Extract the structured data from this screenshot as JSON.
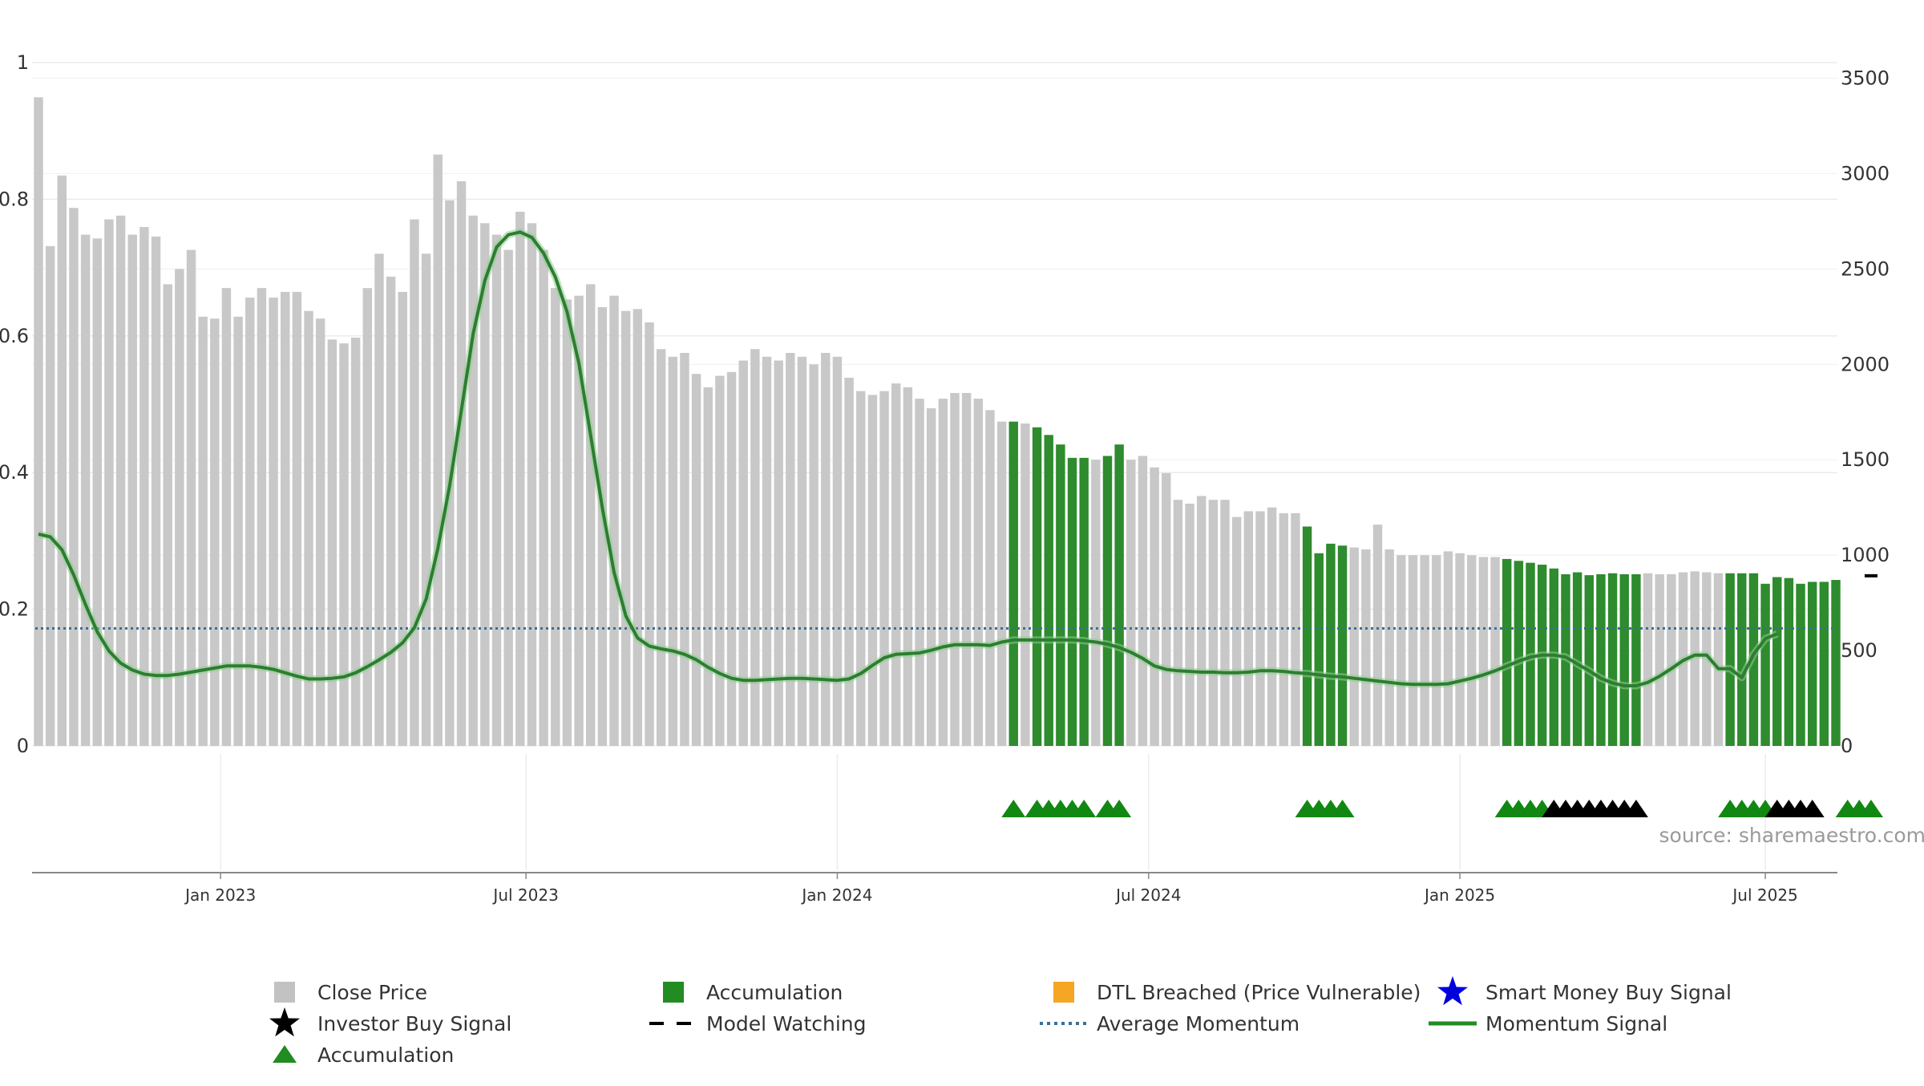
{
  "chart_data": {
    "type": "bar",
    "x_ticks": [
      "Jan 2023",
      "Jul 2023",
      "Jan 2024",
      "Jul 2024",
      "Jan 2025",
      "Jul 2025"
    ],
    "left_axis": {
      "ylim": [
        0,
        1
      ],
      "ticks": [
        "0",
        "0.2",
        "0.4",
        "0.6",
        "0.8",
        "1"
      ],
      "tick_values": [
        0,
        0.2,
        0.4,
        0.6,
        0.8,
        1.0
      ]
    },
    "right_axis": {
      "ylim": [
        0,
        3500
      ],
      "ticks": [
        "0",
        "500",
        "1000",
        "1500",
        "2000",
        "2500",
        "3000",
        "3500"
      ],
      "tick_values": [
        0,
        500,
        1000,
        1500,
        2000,
        2500,
        3000,
        3500
      ]
    },
    "grid": true,
    "legend_position": "bottom",
    "series": [
      {
        "name": "Close Price",
        "axis": "right",
        "values": [
          3400,
          2620,
          2990,
          2820,
          2680,
          2660,
          2760,
          2780,
          2680,
          2720,
          2670,
          2420,
          2500,
          2600,
          2250,
          2240,
          2400,
          2250,
          2350,
          2400,
          2350,
          2380,
          2380,
          2280,
          2240,
          2130,
          2110,
          2140,
          2400,
          2580,
          2460,
          2380,
          2760,
          2580,
          3100,
          2860,
          2960,
          2780,
          2740,
          2680,
          2600,
          2800,
          2740,
          2600,
          2400,
          2340,
          2360,
          2420,
          2300,
          2360,
          2280,
          2290,
          2220,
          2080,
          2040,
          2060,
          1950,
          1880,
          1940,
          1960,
          2020,
          2080,
          2040,
          2020,
          2060,
          2040,
          2000,
          2060,
          2040,
          1930,
          1860,
          1840,
          1860,
          1900,
          1880,
          1820,
          1770,
          1820,
          1850,
          1850,
          1820,
          1760,
          1700,
          1700,
          1690,
          1670,
          1630,
          1580,
          1510,
          1510,
          1500,
          1520,
          1580,
          1500,
          1520,
          1460,
          1430,
          1290,
          1270,
          1310,
          1290,
          1290,
          1200,
          1230,
          1230,
          1250,
          1220,
          1220,
          1150,
          1010,
          1060,
          1050,
          1040,
          1030,
          1160,
          1030,
          1000,
          1000,
          1000,
          1000,
          1020,
          1010,
          1000,
          990,
          990,
          980,
          970,
          960,
          950,
          930,
          900,
          910,
          895,
          900,
          905,
          900,
          900,
          905,
          900,
          900,
          910,
          915,
          910,
          905,
          905,
          905,
          905,
          850,
          885,
          880,
          850,
          860,
          860,
          870
        ]
      },
      {
        "name": "Accumulation",
        "highlight_indices": [
          83,
          85,
          86,
          87,
          88,
          89,
          91,
          92,
          108,
          109,
          110,
          111,
          125,
          126,
          127,
          128,
          129,
          130,
          131,
          132,
          133,
          134,
          135,
          136,
          144,
          145,
          146,
          147,
          148,
          149,
          150,
          151,
          152,
          153,
          154,
          157,
          158,
          159
        ]
      },
      {
        "name": "Momentum Signal",
        "axis": "left",
        "values": [
          0.31,
          0.306,
          0.287,
          0.25,
          0.207,
          0.167,
          0.139,
          0.121,
          0.111,
          0.105,
          0.103,
          0.103,
          0.105,
          0.108,
          0.111,
          0.114,
          0.117,
          0.117,
          0.117,
          0.115,
          0.112,
          0.107,
          0.102,
          0.098,
          0.098,
          0.099,
          0.101,
          0.107,
          0.116,
          0.126,
          0.137,
          0.151,
          0.173,
          0.215,
          0.289,
          0.381,
          0.491,
          0.603,
          0.681,
          0.73,
          0.748,
          0.752,
          0.744,
          0.721,
          0.686,
          0.635,
          0.56,
          0.455,
          0.348,
          0.254,
          0.19,
          0.158,
          0.146,
          0.142,
          0.139,
          0.134,
          0.126,
          0.115,
          0.106,
          0.099,
          0.096,
          0.096,
          0.097,
          0.098,
          0.099,
          0.099,
          0.098,
          0.097,
          0.096,
          0.098,
          0.106,
          0.118,
          0.129,
          0.134,
          0.135,
          0.136,
          0.14,
          0.145,
          0.148,
          0.148,
          0.148,
          0.147,
          0.152,
          0.155,
          0.155,
          0.155,
          0.155,
          0.155,
          0.155,
          0.154,
          0.152,
          0.149,
          0.144,
          0.137,
          0.128,
          0.117,
          0.112,
          0.11,
          0.109,
          0.108,
          0.108,
          0.107,
          0.107,
          0.108,
          0.11,
          0.11,
          0.109,
          0.107,
          0.106,
          0.104,
          0.102,
          0.101,
          0.099,
          0.097,
          0.095,
          0.093,
          0.091,
          0.09,
          0.09,
          0.09,
          0.091,
          0.095,
          0.099,
          0.104,
          0.11,
          0.117,
          0.124,
          0.13,
          0.133,
          0.133,
          0.13,
          0.12,
          0.11,
          0.099,
          0.092,
          0.088,
          0.088,
          0.093,
          0.102,
          0.113,
          0.125,
          0.133,
          0.133,
          0.113,
          0.113,
          0.1,
          0.134,
          0.157,
          0.164
        ]
      },
      {
        "name": "Average Momentum",
        "axis": "left",
        "value": 0.172
      },
      {
        "name": "Model Watching",
        "axis": "left",
        "value": 0.249
      },
      {
        "name": "Accumulation markers (green)",
        "indices": [
          83,
          85,
          86,
          87,
          88,
          89,
          91,
          92,
          108,
          109,
          110,
          111,
          125,
          126,
          127,
          128,
          144,
          145,
          146,
          147,
          154,
          155,
          156
        ]
      },
      {
        "name": "Investor Buy Signal markers (black)",
        "indices": [
          129,
          130,
          131,
          132,
          133,
          134,
          135,
          136,
          148,
          149,
          150,
          151
        ]
      }
    ]
  },
  "legend": [
    {
      "label": "Close Price",
      "color": "#bbbbbb",
      "symbol": "square"
    },
    {
      "label": "Accumulation",
      "color": "#228b22",
      "symbol": "square"
    },
    {
      "label": "DTL Breached (Price Vulnerable)",
      "color": "#f5a623",
      "symbol": "square"
    },
    {
      "label": "Smart Money Buy Signal",
      "color": "#0000dd",
      "symbol": "star"
    },
    {
      "label": "Investor Buy Signal",
      "color": "#000000",
      "symbol": "star"
    },
    {
      "label": "Model Watching",
      "color": "#000000",
      "symbol": "dash"
    },
    {
      "label": "Average Momentum",
      "color": "#3a6f96",
      "symbol": "dotted-line"
    },
    {
      "label": "Momentum Signal",
      "color": "#228b22",
      "symbol": "line"
    },
    {
      "label": "Accumulation",
      "color": "#228b22",
      "symbol": "triangle"
    }
  ],
  "source_text": "source: sharemaestro.com",
  "colors": {
    "close_price": "#c8c8c8",
    "accumulation": "#2e8b2e",
    "momentum_line": "#2e7d32",
    "average_momentum": "#3a6f96",
    "marker_green": "#118811",
    "marker_black": "#000000",
    "grid": "#ebebeb",
    "axis": "#888888"
  }
}
